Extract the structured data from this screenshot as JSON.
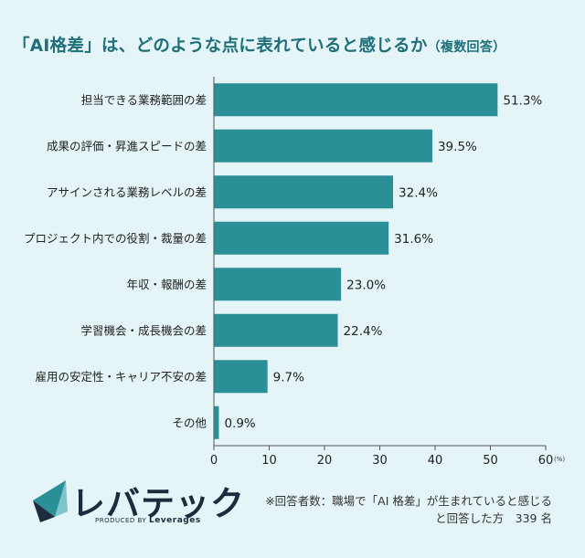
{
  "title": {
    "main": "「AI格差」は、どのような点に表れていると感じるか",
    "suffix": "（複数回答）"
  },
  "chart_data": {
    "type": "bar",
    "orientation": "horizontal",
    "categories": [
      "担当できる業務範囲の差",
      "成果の評価・昇進スピードの差",
      "アサインされる業務レベルの差",
      "プロジェクト内での役割・裁量の差",
      "年収・報酬の差",
      "学習機会・成長機会の差",
      "雇用の安定性・キャリア不安の差",
      "その他"
    ],
    "values": [
      51.3,
      39.5,
      32.4,
      31.6,
      23.0,
      22.4,
      9.7,
      0.9
    ],
    "value_labels": [
      "51.3%",
      "39.5%",
      "32.4%",
      "31.6%",
      "23.0%",
      "22.4%",
      "9.7%",
      "0.9%"
    ],
    "xlim": [
      0,
      60
    ],
    "xticks": [
      "0",
      "10",
      "20",
      "30",
      "40",
      "50",
      "60"
    ],
    "x_unit": "(%)",
    "grid": false,
    "bar_color": "#2a8f96"
  },
  "logo": {
    "name": "レバテック",
    "produced_prefix": "PRODUCED BY",
    "produced_brand": "Leverages"
  },
  "note": {
    "line1": "※回答者数：職場で「AI 格差」が生まれていると感じる",
    "line2": "と回答した方　339 名"
  }
}
